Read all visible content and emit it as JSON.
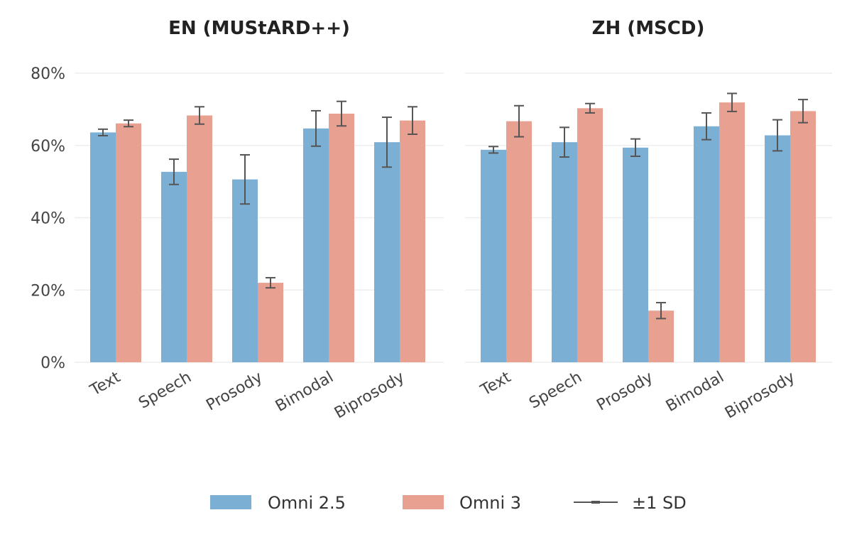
{
  "chart_data": [
    {
      "type": "bar",
      "title": "EN (MUStARD++)",
      "categories": [
        "Text",
        "Speech",
        "Prosody",
        "Bimodal",
        "Biprosody"
      ],
      "ylim": [
        0,
        80
      ],
      "yticks": [
        "0%",
        "20%",
        "40%",
        "60%",
        "80%"
      ],
      "grid": true,
      "series": [
        {
          "name": "Omni 2.5",
          "color": "#7bafd4",
          "values": [
            63.6,
            52.7,
            50.6,
            64.7,
            60.9
          ],
          "sd": [
            0.9,
            3.5,
            6.8,
            4.9,
            6.9
          ]
        },
        {
          "name": "Omni 3",
          "color": "#e8a090",
          "values": [
            66.1,
            68.3,
            22.0,
            68.8,
            66.9
          ],
          "sd": [
            0.9,
            2.4,
            1.4,
            3.4,
            3.8
          ]
        }
      ]
    },
    {
      "type": "bar",
      "title": "ZH (MSCD)",
      "categories": [
        "Text",
        "Speech",
        "Prosody",
        "Bimodal",
        "Biprosody"
      ],
      "ylim": [
        0,
        80
      ],
      "yticks": [],
      "grid": true,
      "series": [
        {
          "name": "Omni 2.5",
          "color": "#7bafd4",
          "values": [
            58.8,
            60.9,
            59.4,
            65.3,
            62.8
          ],
          "sd": [
            0.9,
            4.1,
            2.4,
            3.7,
            4.3
          ]
        },
        {
          "name": "Omni 3",
          "color": "#e8a090",
          "values": [
            66.7,
            70.3,
            14.3,
            71.9,
            69.5
          ],
          "sd": [
            4.3,
            1.3,
            2.2,
            2.5,
            3.2
          ]
        }
      ]
    }
  ],
  "legend": {
    "placement": "bottom",
    "items": [
      {
        "label": "Omni 2.5",
        "kind": "patch",
        "color": "#7bafd4"
      },
      {
        "label": "Omni 3",
        "kind": "patch",
        "color": "#e8a090"
      },
      {
        "label": "±1 SD",
        "kind": "line",
        "color": "#555555"
      }
    ]
  }
}
